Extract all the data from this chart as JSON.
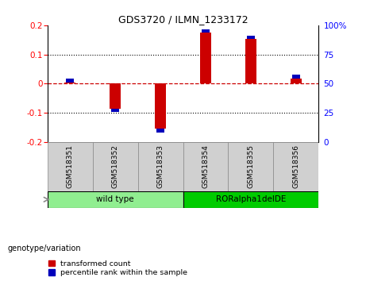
{
  "title": "GDS3720 / ILMN_1233172",
  "samples": [
    "GSM518351",
    "GSM518352",
    "GSM518353",
    "GSM518354",
    "GSM518355",
    "GSM518356"
  ],
  "transformed_count": [
    0.005,
    -0.085,
    -0.155,
    0.175,
    0.152,
    0.018
  ],
  "percentile_rank_raw": [
    47,
    22,
    15,
    93,
    90,
    57
  ],
  "ylim_left": [
    -0.2,
    0.2
  ],
  "ylim_right": [
    0,
    100
  ],
  "yticks_left": [
    -0.2,
    -0.1,
    0,
    0.1,
    0.2
  ],
  "yticks_right": [
    0,
    25,
    50,
    75,
    100
  ],
  "ytick_labels_left": [
    "-0.2",
    "-0.1",
    "0",
    "0.1",
    "0.2"
  ],
  "ytick_labels_right": [
    "0",
    "25",
    "50",
    "75",
    "100%"
  ],
  "groups": [
    {
      "label": "wild type",
      "samples": [
        0,
        1,
        2
      ],
      "color": "#90EE90"
    },
    {
      "label": "RORalpha1delDE",
      "samples": [
        3,
        4,
        5
      ],
      "color": "#00CC00"
    }
  ],
  "group_label": "genotype/variation",
  "bar_color_red": "#CC0000",
  "bar_color_blue": "#0000BB",
  "hline_color": "#CC0000",
  "grid_color": "#000000",
  "legend_items": [
    "transformed count",
    "percentile rank within the sample"
  ],
  "bar_width": 0.25,
  "blue_bar_height": 0.012,
  "blue_bar_width": 0.18
}
